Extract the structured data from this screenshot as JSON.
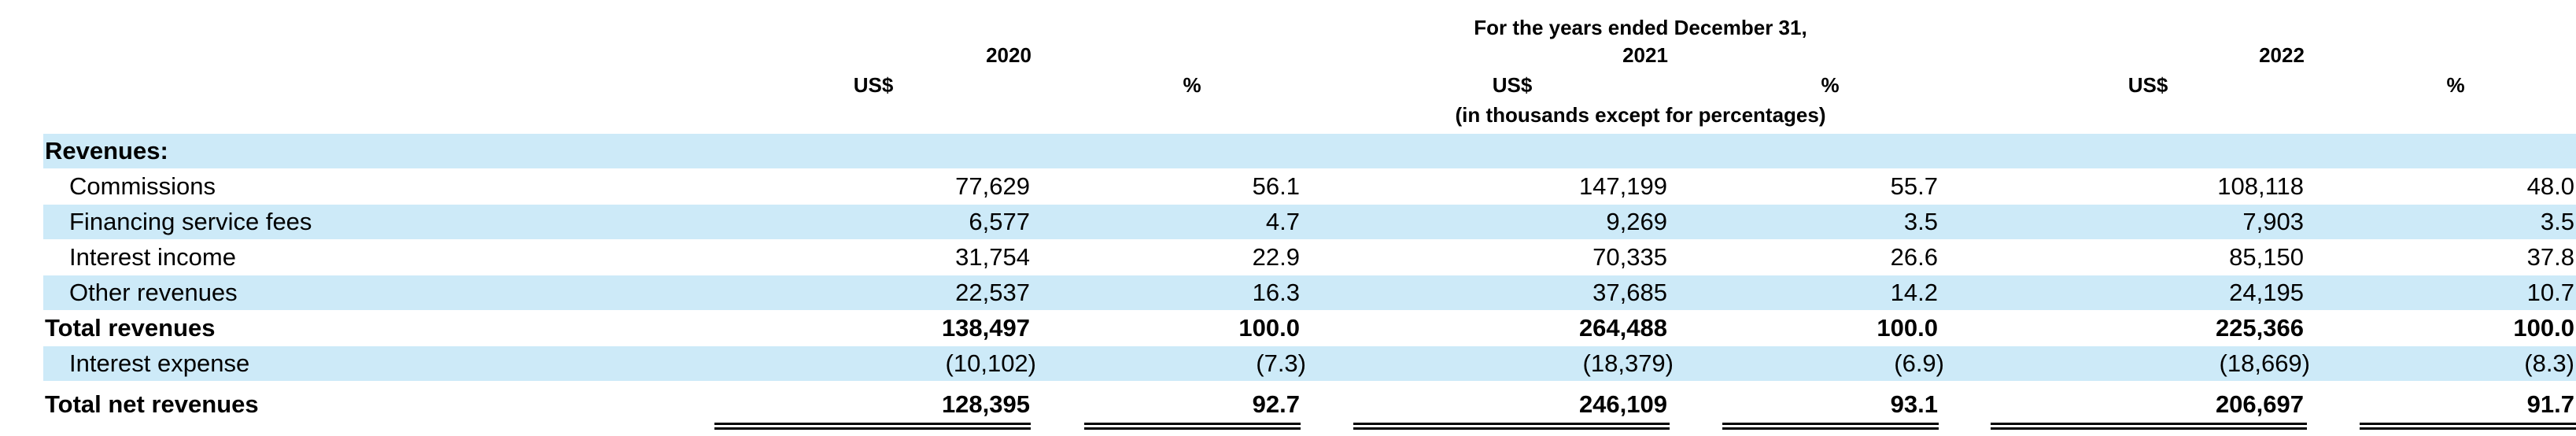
{
  "header": {
    "period_title": "For the years ended December 31,",
    "years": [
      "2020",
      "2021",
      "2022"
    ],
    "currency": "US$",
    "percent": "%",
    "units_note": "(in thousands except for percentages)"
  },
  "section_label": "Revenues:",
  "rows": [
    {
      "label": "Commissions",
      "v2020": "77,629",
      "p2020": "56.1",
      "v2021": "147,199",
      "p2021": "55.7",
      "v2022": "108,118",
      "p2022": "48.0"
    },
    {
      "label": "Financing service fees",
      "v2020": "6,577",
      "p2020": "4.7",
      "v2021": "9,269",
      "p2021": "3.5",
      "v2022": "7,903",
      "p2022": "3.5"
    },
    {
      "label": "Interest income",
      "v2020": "31,754",
      "p2020": "22.9",
      "v2021": "70,335",
      "p2021": "26.6",
      "v2022": "85,150",
      "p2022": "37.8"
    },
    {
      "label": "Other revenues",
      "v2020": "22,537",
      "p2020": "16.3",
      "v2021": "37,685",
      "p2021": "14.2",
      "v2022": "24,195",
      "p2022": "10.7"
    },
    {
      "label": "Total revenues",
      "v2020": "138,497",
      "p2020": "100.0",
      "v2021": "264,488",
      "p2021": "100.0",
      "v2022": "225,366",
      "p2022": "100.0"
    },
    {
      "label": "Interest expense",
      "v2020": "(10,102)",
      "p2020": "(7.3)",
      "v2021": "(18,379)",
      "p2021": "(6.9)",
      "v2022": "(18,669)",
      "p2022": "(8.3)"
    },
    {
      "label": "Total net revenues",
      "v2020": "128,395",
      "p2020": "92.7",
      "v2021": "246,109",
      "p2021": "93.1",
      "v2022": "206,697",
      "p2022": "91.7"
    }
  ]
}
